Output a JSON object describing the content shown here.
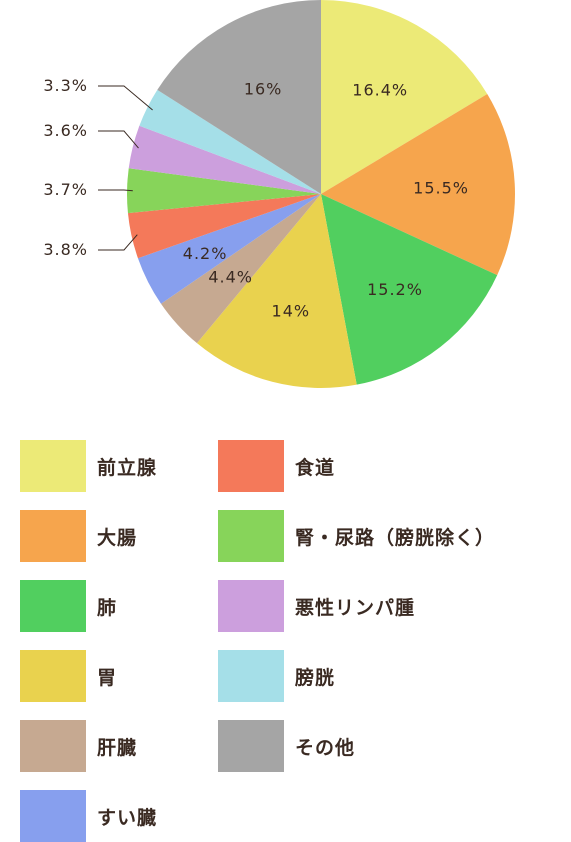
{
  "chart_data": {
    "type": "pie",
    "title": "",
    "slices": [
      {
        "name": "前立腺",
        "value": 16.4,
        "label": "16.4%",
        "color": "#ecea77"
      },
      {
        "name": "大腸",
        "value": 15.5,
        "label": "15.5%",
        "color": "#f6a54d"
      },
      {
        "name": "肺",
        "value": 15.2,
        "label": "15.2%",
        "color": "#51cf5f"
      },
      {
        "name": "胃",
        "value": 14.0,
        "label": "14%",
        "color": "#e9d24e"
      },
      {
        "name": "肝臓",
        "value": 4.4,
        "label": "4.4%",
        "color": "#c6a991"
      },
      {
        "name": "すい臓",
        "value": 4.2,
        "label": "4.2%",
        "color": "#879fee"
      },
      {
        "name": "食道",
        "value": 3.8,
        "label": "3.8%",
        "color": "#f4795a"
      },
      {
        "name": "腎・尿路（膀胱除く）",
        "value": 3.7,
        "label": "3.7%",
        "color": "#87d45a"
      },
      {
        "name": "悪性リンパ腫",
        "value": 3.6,
        "label": "3.6%",
        "color": "#cc9fdd"
      },
      {
        "name": "膀胱",
        "value": 3.3,
        "label": "3.3%",
        "color": "#a5dfe8"
      },
      {
        "name": "その他",
        "value": 16.0,
        "label": "16%",
        "color": "#a5a5a5"
      }
    ],
    "legend_placement": "bottom"
  }
}
